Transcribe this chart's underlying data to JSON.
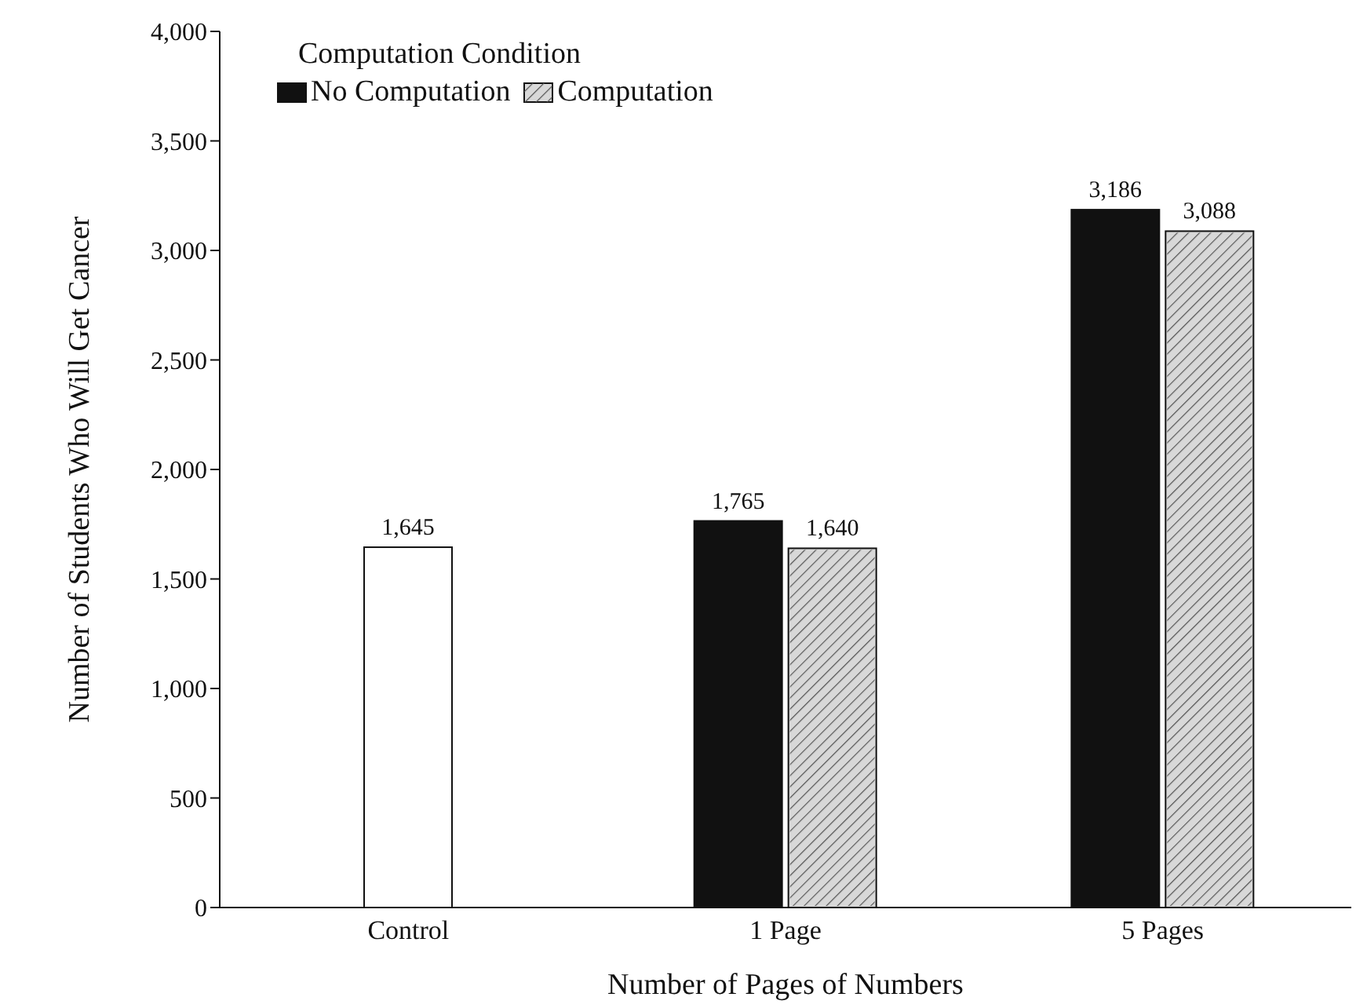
{
  "chart_data": {
    "type": "bar",
    "xlabel": "Number of Pages of Numbers",
    "ylabel": "Number of Students Who Will Get Cancer",
    "legend_title": "Computation Condition",
    "categories": [
      "Control",
      "1 Page",
      "5 Pages"
    ],
    "series": [
      {
        "color": "#ffffff",
        "values": [
          1645,
          null,
          null
        ],
        "value_labels": [
          "1,645",
          null,
          null
        ]
      },
      {
        "name": "No Computation",
        "color": "#111111",
        "values": [
          null,
          1765,
          3186
        ],
        "value_labels": [
          null,
          "1,765",
          "3,186"
        ]
      },
      {
        "name": "Computation",
        "color": "#d8d8d8",
        "values": [
          null,
          1640,
          3088
        ],
        "value_labels": [
          null,
          "1,640",
          "3,088"
        ]
      }
    ],
    "ylim": [
      0,
      4000
    ],
    "yticks": [
      {
        "value": 0,
        "label": "0"
      },
      {
        "value": 500,
        "label": "500"
      },
      {
        "value": 1000,
        "label": "1,000"
      },
      {
        "value": 1500,
        "label": "1,500"
      },
      {
        "value": 2000,
        "label": "2,000"
      },
      {
        "value": 2500,
        "label": "2,500"
      },
      {
        "value": 3000,
        "label": "3,000"
      },
      {
        "value": 3500,
        "label": "3,500"
      },
      {
        "value": 4000,
        "label": "4,000"
      }
    ],
    "grid": false,
    "legend": "top left"
  }
}
